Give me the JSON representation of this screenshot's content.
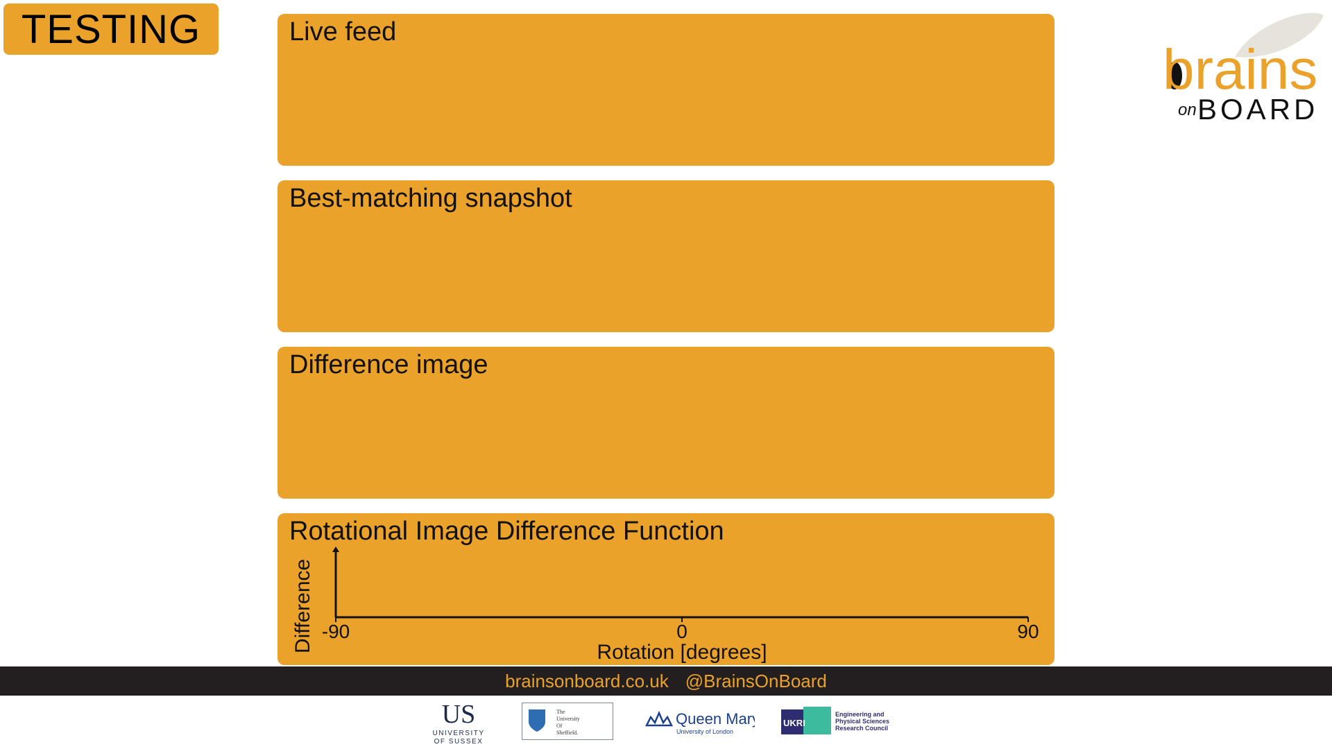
{
  "badge": {
    "label": "TESTING"
  },
  "panels": [
    {
      "title": "Live feed"
    },
    {
      "title": "Best-matching snapshot"
    },
    {
      "title": "Difference image"
    },
    {
      "title": "Rotational Image Difference Function"
    }
  ],
  "chart_data": {
    "type": "line",
    "title": "Rotational Image Difference Function",
    "xlabel": "Rotation [degrees]",
    "ylabel": "Difference",
    "xlim": [
      -90,
      90
    ],
    "x_ticks": [
      "-90",
      "0",
      "90"
    ],
    "series": []
  },
  "footer": {
    "website": "brainsonboard.co.uk",
    "twitter": "@BrainsOnBoard"
  },
  "logos": {
    "brand_main": "brains",
    "brand_on": "on",
    "brand_board": "BOARD",
    "sussex_mark": "US",
    "sussex_line1": "UNIVERSITY",
    "sussex_line2": "OF SUSSEX",
    "sheffield_lines": [
      "The",
      "University",
      "Of",
      "Sheffield."
    ],
    "qm_name": "Queen Mary",
    "qm_sub": "University of London",
    "ukri_mark": "UKRI",
    "epsrc_lines": [
      "Engineering and",
      "Physical Sciences",
      "Research Council"
    ]
  },
  "colors": {
    "accent": "#eba22b",
    "bar": "#231f20",
    "axis": "#111111"
  }
}
